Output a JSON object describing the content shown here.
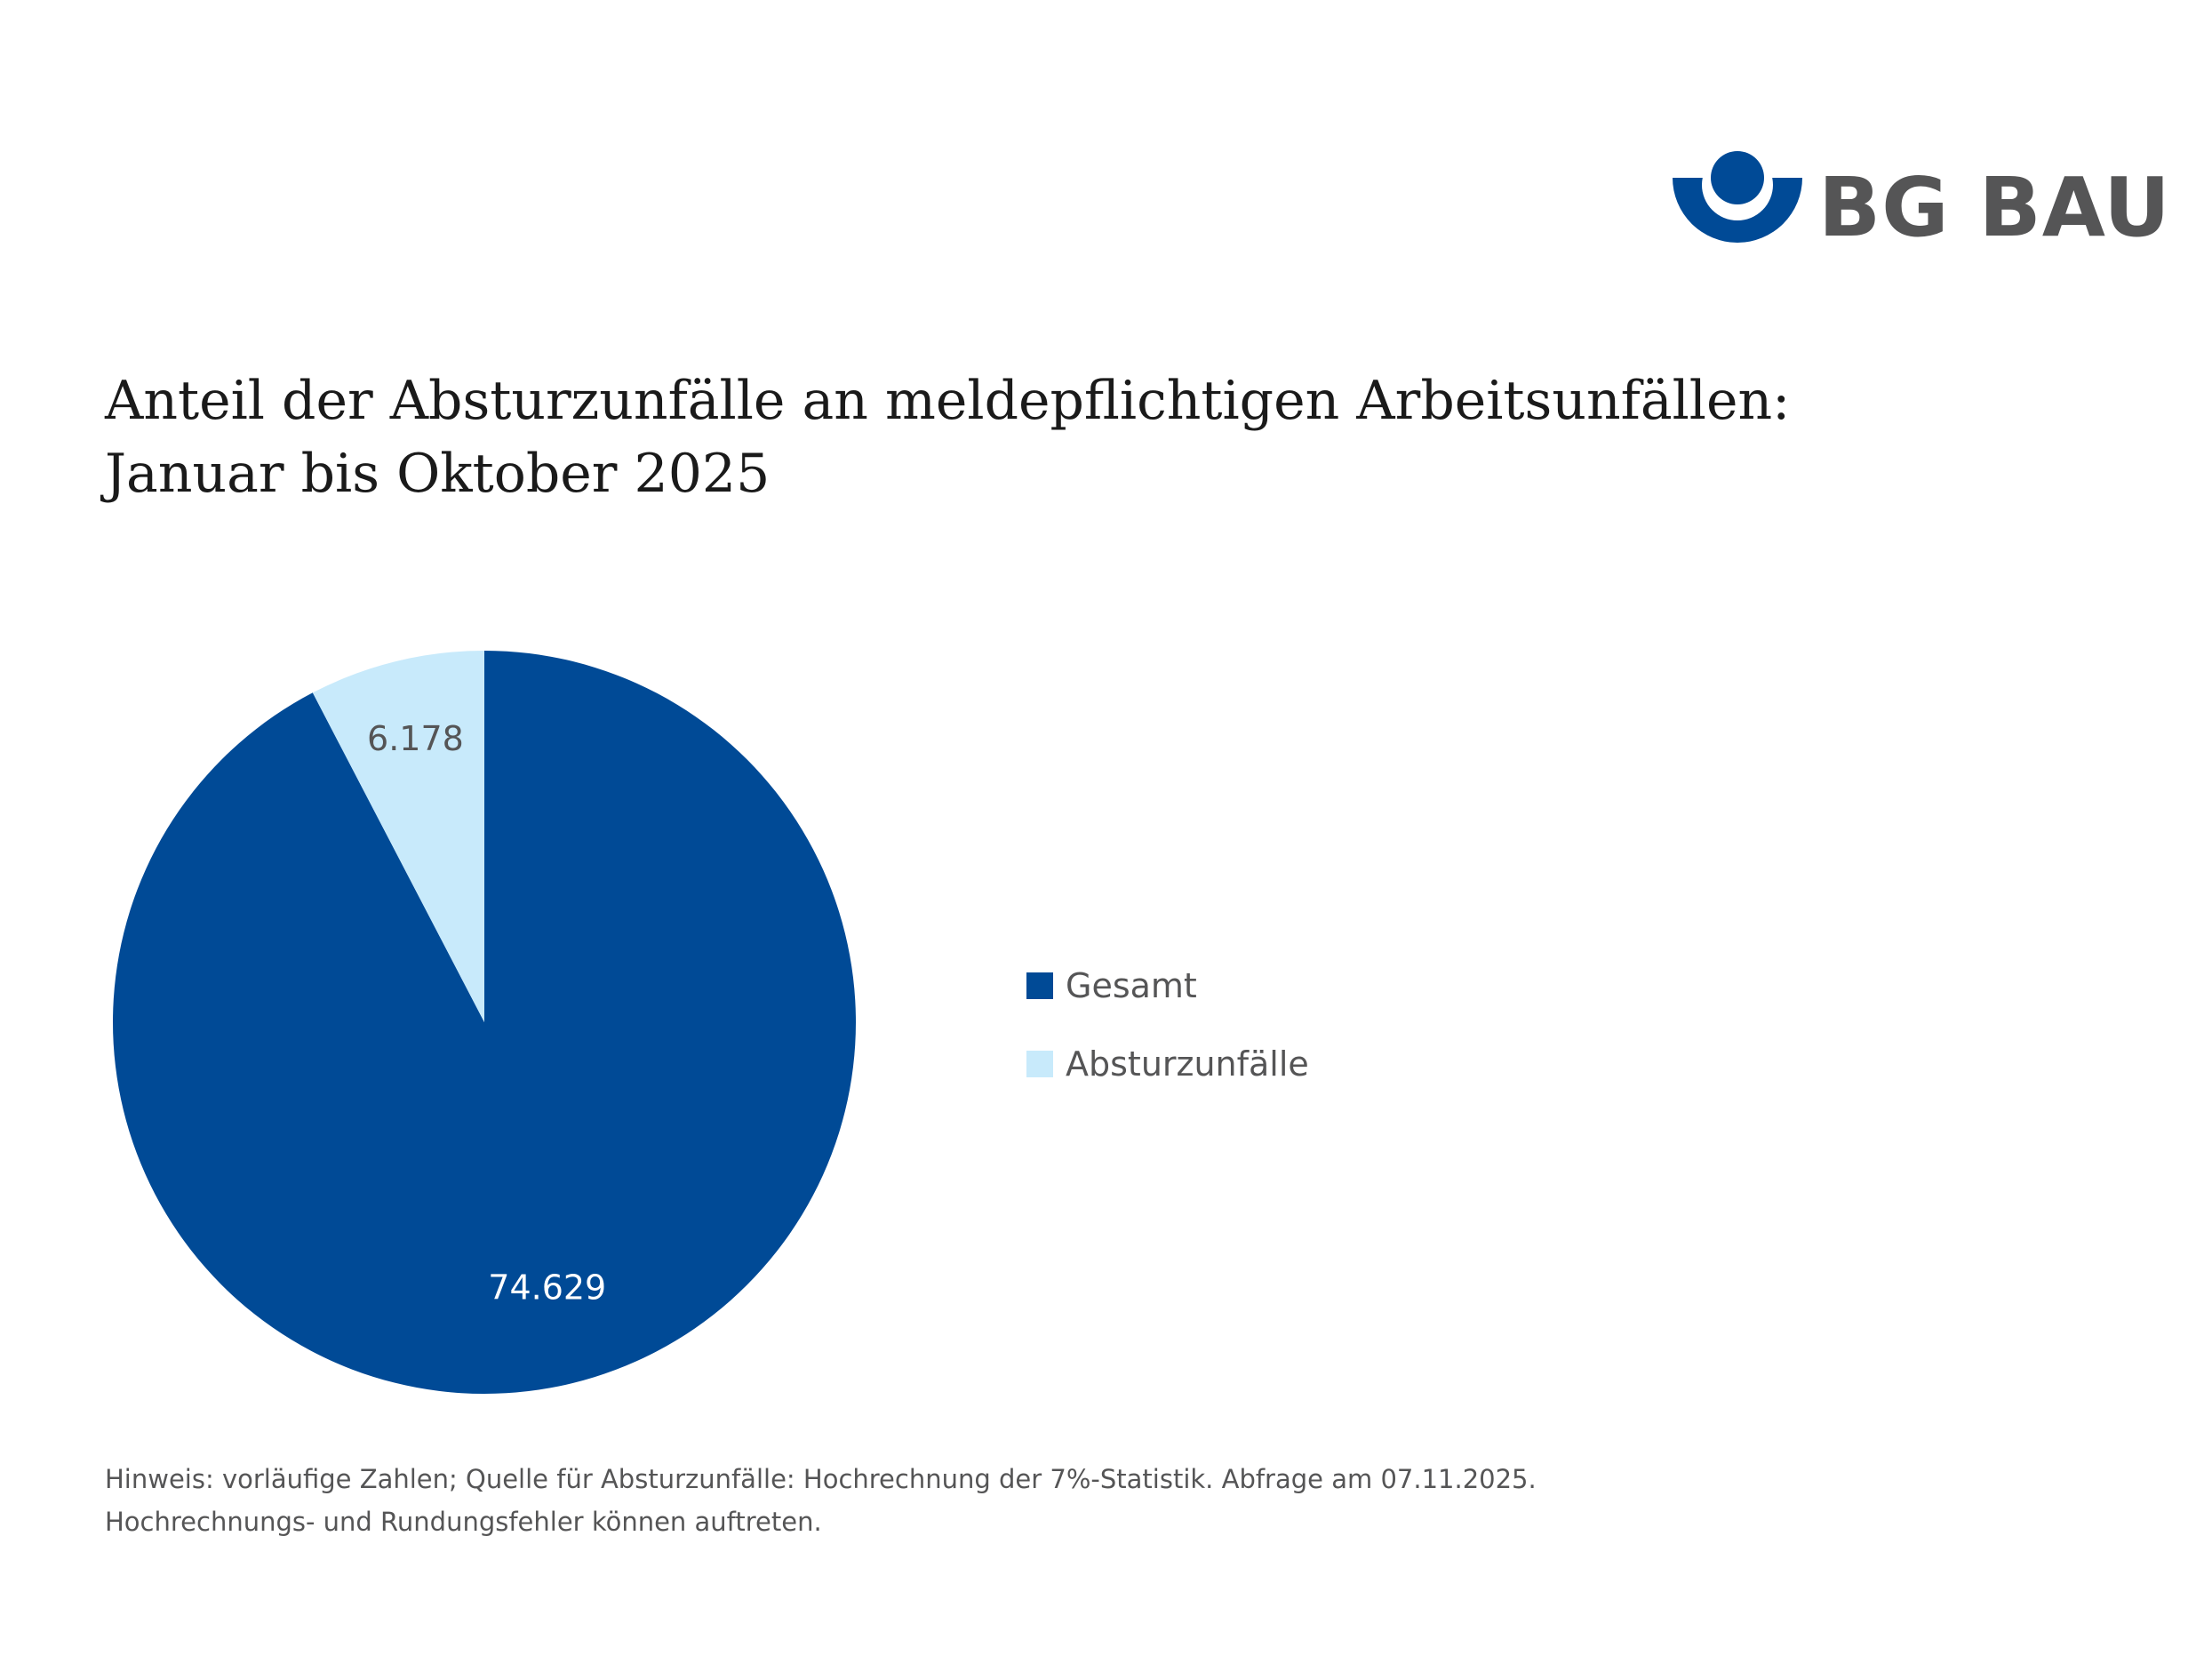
{
  "brand": {
    "name": "BG BAU",
    "primary_color": "#004a96",
    "text_color": "#555556"
  },
  "title": {
    "line1": "Anteil der Absturzunfälle an meldepflichtigen Arbeitsunfällen:",
    "line2": "Januar bis Oktober 2025"
  },
  "chart_data": {
    "type": "pie",
    "title": "Anteil der Absturzunfälle an meldepflichtigen Arbeitsunfällen: Januar bis Oktober 2025",
    "categories": [
      "Gesamt",
      "Absturzunfälle"
    ],
    "values": [
      74629,
      6178
    ],
    "labels": [
      "74.629",
      "6.178"
    ],
    "colors": [
      "#004a96",
      "#c8eafb"
    ],
    "label_colors": [
      "#ffffff",
      "#555556"
    ],
    "legend_position": "right",
    "start": "12 o'clock, counter-clockwise for Absturzunfälle"
  },
  "footnote": {
    "line1": "Hinweis: vorläufige Zahlen; Quelle für Absturzunfälle: Hochrechnung der 7%-Statistik. Abfrage am 07.11.2025.",
    "line2": "Hochrechnungs- und Rundungsfehler können auftreten."
  }
}
